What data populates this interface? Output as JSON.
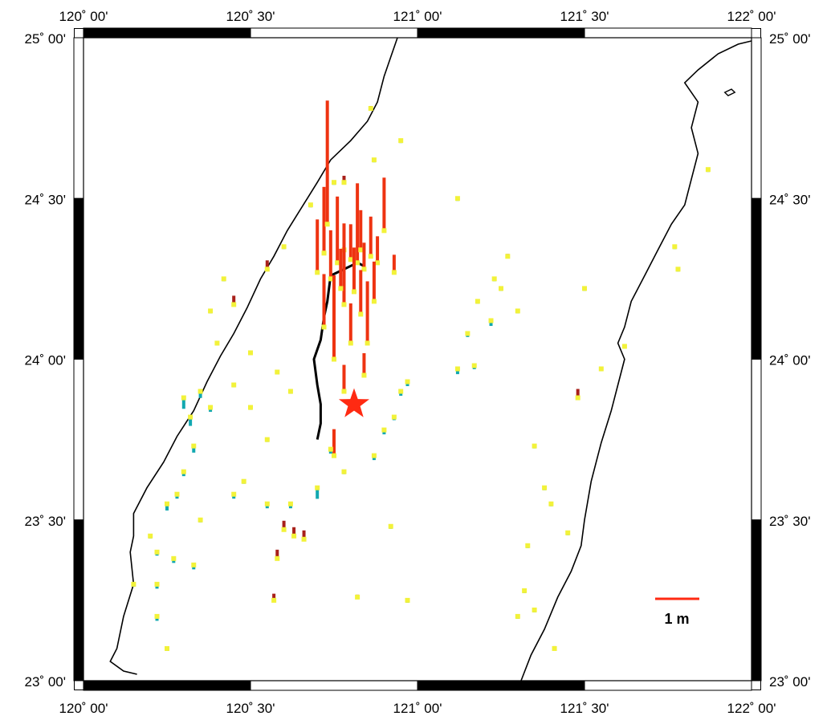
{
  "map": {
    "lon_range": [
      120.0,
      122.0
    ],
    "lat_range": [
      23.0,
      25.0
    ],
    "lon_ticks": [
      {
        "value": 120.0,
        "label": "120˚ 00'"
      },
      {
        "value": 120.5,
        "label": "120˚ 30'"
      },
      {
        "value": 121.0,
        "label": "121˚ 00'"
      },
      {
        "value": 121.5,
        "label": "121˚ 30'"
      },
      {
        "value": 122.0,
        "label": "122˚ 00'"
      }
    ],
    "lat_ticks": [
      {
        "value": 25.0,
        "label": "25˚ 00'"
      },
      {
        "value": 24.5,
        "label": "24˚ 30'"
      },
      {
        "value": 24.0,
        "label": "24˚ 00'"
      },
      {
        "value": 23.5,
        "label": "23˚ 30'"
      },
      {
        "value": 23.0,
        "label": "23˚ 00'"
      }
    ],
    "frame_band_colors": [
      "#000000",
      "#ffffff"
    ],
    "epicenter": {
      "lon": 120.81,
      "lat": 23.86,
      "symbol": "star-icon",
      "color": "#ff2a12"
    },
    "scale_bar": {
      "label": "1 m",
      "color": "#ff2a12"
    },
    "colors": {
      "uplift_large": "#ee3311",
      "uplift_small": "#a8201a",
      "subsidence": "#11a8b0",
      "station": "#f2f23a",
      "coastline": "#000000",
      "fault": "#000000"
    },
    "coastline_west": [
      [
        120.94,
        25.0
      ],
      [
        120.92,
        24.94
      ],
      [
        120.9,
        24.88
      ],
      [
        120.88,
        24.8
      ],
      [
        120.85,
        24.74
      ],
      [
        120.8,
        24.68
      ],
      [
        120.74,
        24.62
      ],
      [
        120.7,
        24.55
      ],
      [
        120.67,
        24.5
      ],
      [
        120.64,
        24.45
      ],
      [
        120.61,
        24.4
      ],
      [
        120.57,
        24.32
      ],
      [
        120.53,
        24.25
      ],
      [
        120.49,
        24.16
      ],
      [
        120.45,
        24.08
      ],
      [
        120.41,
        24.01
      ],
      [
        120.37,
        23.93
      ],
      [
        120.33,
        23.84
      ],
      [
        120.28,
        23.76
      ],
      [
        120.24,
        23.68
      ],
      [
        120.19,
        23.6
      ],
      [
        120.15,
        23.52
      ],
      [
        120.15,
        23.45
      ],
      [
        120.14,
        23.4
      ],
      [
        120.15,
        23.3
      ],
      [
        120.12,
        23.2
      ],
      [
        120.1,
        23.1
      ],
      [
        120.08,
        23.06
      ],
      [
        120.12,
        23.03
      ],
      [
        120.16,
        23.02
      ]
    ],
    "coastline_east": [
      [
        121.31,
        23.0
      ],
      [
        121.34,
        23.08
      ],
      [
        121.38,
        23.16
      ],
      [
        121.42,
        23.26
      ],
      [
        121.46,
        23.34
      ],
      [
        121.49,
        23.42
      ],
      [
        121.5,
        23.5
      ],
      [
        121.52,
        23.62
      ],
      [
        121.55,
        23.74
      ],
      [
        121.58,
        23.84
      ],
      [
        121.6,
        23.92
      ],
      [
        121.62,
        24.0
      ],
      [
        121.6,
        24.05
      ],
      [
        121.62,
        24.1
      ],
      [
        121.64,
        24.18
      ],
      [
        121.68,
        24.26
      ],
      [
        121.72,
        24.34
      ],
      [
        121.76,
        24.42
      ],
      [
        121.8,
        24.48
      ],
      [
        121.82,
        24.56
      ],
      [
        121.84,
        24.64
      ],
      [
        121.82,
        24.72
      ],
      [
        121.84,
        24.8
      ],
      [
        121.8,
        24.86
      ],
      [
        121.84,
        24.9
      ],
      [
        121.9,
        24.95
      ],
      [
        121.96,
        24.98
      ],
      [
        122.0,
        24.99
      ]
    ],
    "fault_trace": [
      [
        120.7,
        23.75
      ],
      [
        120.71,
        23.8
      ],
      [
        120.71,
        23.86
      ],
      [
        120.7,
        23.92
      ],
      [
        120.69,
        24.0
      ],
      [
        120.71,
        24.06
      ],
      [
        120.72,
        24.13
      ],
      [
        120.73,
        24.18
      ],
      [
        120.74,
        24.26
      ],
      [
        120.78,
        24.28
      ],
      [
        120.82,
        24.3
      ],
      [
        120.84,
        24.29
      ]
    ],
    "island_marker": [
      [
        121.92,
        24.83
      ],
      [
        121.94,
        24.84
      ],
      [
        121.95,
        24.83
      ],
      [
        121.93,
        24.82
      ]
    ],
    "stations": [
      {
        "lon": 120.7,
        "lat": 24.27,
        "dz": 1.2
      },
      {
        "lon": 120.72,
        "lat": 24.33,
        "dz": 1.5
      },
      {
        "lon": 120.73,
        "lat": 24.42,
        "dz": 2.8
      },
      {
        "lon": 120.74,
        "lat": 24.25,
        "dz": 1.1
      },
      {
        "lon": 120.76,
        "lat": 24.3,
        "dz": 1.5
      },
      {
        "lon": 120.78,
        "lat": 24.34,
        "dz": 0.6
      },
      {
        "lon": 120.78,
        "lat": 24.17,
        "dz": 1.3
      },
      {
        "lon": 120.8,
        "lat": 24.31,
        "dz": 0.8
      },
      {
        "lon": 120.82,
        "lat": 24.3,
        "dz": 1.8
      },
      {
        "lon": 120.83,
        "lat": 24.34,
        "dz": 0.9
      },
      {
        "lon": 120.84,
        "lat": 24.28,
        "dz": 0.6
      },
      {
        "lon": 120.86,
        "lat": 24.32,
        "dz": 0.9
      },
      {
        "lon": 120.88,
        "lat": 24.3,
        "dz": 0.6
      },
      {
        "lon": 120.9,
        "lat": 24.4,
        "dz": 1.2
      },
      {
        "lon": 120.93,
        "lat": 24.27,
        "dz": 0.4
      },
      {
        "lon": 120.72,
        "lat": 24.1,
        "dz": 1.2
      },
      {
        "lon": 120.75,
        "lat": 24.0,
        "dz": 1.9
      },
      {
        "lon": 120.77,
        "lat": 24.22,
        "dz": 0.9
      },
      {
        "lon": 120.81,
        "lat": 24.21,
        "dz": 1.0
      },
      {
        "lon": 120.83,
        "lat": 24.14,
        "dz": 1.0
      },
      {
        "lon": 120.85,
        "lat": 24.05,
        "dz": 1.4
      },
      {
        "lon": 120.87,
        "lat": 24.18,
        "dz": 0.9
      },
      {
        "lon": 120.8,
        "lat": 24.05,
        "dz": 0.9
      },
      {
        "lon": 120.78,
        "lat": 23.9,
        "dz": 0.6
      },
      {
        "lon": 120.75,
        "lat": 23.7,
        "dz": 0.6
      },
      {
        "lon": 120.84,
        "lat": 23.95,
        "dz": 0.5
      },
      {
        "lon": 120.45,
        "lat": 24.17,
        "dz": 0.2
      },
      {
        "lon": 120.55,
        "lat": 24.28,
        "dz": 0.2
      },
      {
        "lon": 120.6,
        "lat": 23.47,
        "dz": 0.2
      },
      {
        "lon": 120.63,
        "lat": 23.45,
        "dz": 0.2
      },
      {
        "lon": 120.66,
        "lat": 23.44,
        "dz": 0.2
      },
      {
        "lon": 120.58,
        "lat": 23.38,
        "dz": 0.2
      },
      {
        "lon": 120.57,
        "lat": 23.25,
        "dz": 0.15
      },
      {
        "lon": 120.82,
        "lat": 23.26,
        "dz": 0.05
      },
      {
        "lon": 120.78,
        "lat": 24.55,
        "dz": 0.15
      },
      {
        "lon": 120.86,
        "lat": 24.78,
        "dz": 0.05
      },
      {
        "lon": 121.27,
        "lat": 24.32,
        "dz": 0.05
      },
      {
        "lon": 121.48,
        "lat": 23.88,
        "dz": 0.2
      },
      {
        "lon": 121.41,
        "lat": 23.1,
        "dz": 0.05
      },
      {
        "lon": 120.3,
        "lat": 23.88,
        "dz": -0.25
      },
      {
        "lon": 120.32,
        "lat": 23.82,
        "dz": -0.2
      },
      {
        "lon": 120.35,
        "lat": 23.9,
        "dz": -0.15
      },
      {
        "lon": 120.33,
        "lat": 23.73,
        "dz": -0.15
      },
      {
        "lon": 120.38,
        "lat": 23.85,
        "dz": -0.1
      },
      {
        "lon": 120.3,
        "lat": 23.65,
        "dz": -0.1
      },
      {
        "lon": 120.28,
        "lat": 23.58,
        "dz": -0.1
      },
      {
        "lon": 120.25,
        "lat": 23.55,
        "dz": -0.15
      },
      {
        "lon": 120.27,
        "lat": 23.38,
        "dz": -0.1
      },
      {
        "lon": 120.33,
        "lat": 23.36,
        "dz": -0.1
      },
      {
        "lon": 120.22,
        "lat": 23.4,
        "dz": -0.08
      },
      {
        "lon": 120.22,
        "lat": 23.3,
        "dz": -0.1
      },
      {
        "lon": 120.22,
        "lat": 23.2,
        "dz": -0.1
      },
      {
        "lon": 120.45,
        "lat": 23.58,
        "dz": -0.1
      },
      {
        "lon": 120.55,
        "lat": 23.55,
        "dz": -0.1
      },
      {
        "lon": 120.62,
        "lat": 23.55,
        "dz": -0.1
      },
      {
        "lon": 120.7,
        "lat": 23.6,
        "dz": -0.25
      },
      {
        "lon": 120.74,
        "lat": 23.72,
        "dz": -0.1
      },
      {
        "lon": 120.78,
        "lat": 23.65,
        "dz": -0.05
      },
      {
        "lon": 120.87,
        "lat": 23.7,
        "dz": -0.1
      },
      {
        "lon": 120.9,
        "lat": 23.78,
        "dz": -0.1
      },
      {
        "lon": 120.95,
        "lat": 23.9,
        "dz": -0.1
      },
      {
        "lon": 120.97,
        "lat": 23.93,
        "dz": -0.1
      },
      {
        "lon": 120.93,
        "lat": 23.82,
        "dz": -0.07
      },
      {
        "lon": 121.12,
        "lat": 23.97,
        "dz": -0.12
      },
      {
        "lon": 121.15,
        "lat": 24.08,
        "dz": -0.08
      },
      {
        "lon": 121.17,
        "lat": 23.98,
        "dz": -0.08
      },
      {
        "lon": 121.18,
        "lat": 24.18,
        "dz": -0.05
      },
      {
        "lon": 121.22,
        "lat": 24.12,
        "dz": -0.12
      },
      {
        "lon": 121.25,
        "lat": 24.22,
        "dz": -0.05
      },
      {
        "lon": 121.3,
        "lat": 24.15,
        "dz": -0.05
      },
      {
        "lon": 121.12,
        "lat": 24.5,
        "dz": -0.02
      },
      {
        "lon": 121.23,
        "lat": 24.25,
        "dz": -0.02
      },
      {
        "lon": 121.5,
        "lat": 24.22,
        "dz": -0.03
      },
      {
        "lon": 121.62,
        "lat": 24.04,
        "dz": -0.03
      },
      {
        "lon": 121.55,
        "lat": 23.97,
        "dz": -0.03
      },
      {
        "lon": 121.78,
        "lat": 24.28,
        "dz": -0.02
      },
      {
        "lon": 121.77,
        "lat": 24.35,
        "dz": -0.02
      },
      {
        "lon": 121.87,
        "lat": 24.59,
        "dz": -0.02
      },
      {
        "lon": 121.35,
        "lat": 23.73,
        "dz": -0.02
      },
      {
        "lon": 121.38,
        "lat": 23.6,
        "dz": -0.02
      },
      {
        "lon": 121.4,
        "lat": 23.55,
        "dz": -0.02
      },
      {
        "lon": 121.45,
        "lat": 23.46,
        "dz": -0.02
      },
      {
        "lon": 121.33,
        "lat": 23.42,
        "dz": -0.03
      },
      {
        "lon": 121.32,
        "lat": 23.28,
        "dz": -0.03
      },
      {
        "lon": 121.35,
        "lat": 23.22,
        "dz": -0.02
      },
      {
        "lon": 121.3,
        "lat": 23.2,
        "dz": -0.02
      },
      {
        "lon": 120.2,
        "lat": 23.45,
        "dz": -0.05
      },
      {
        "lon": 120.35,
        "lat": 23.5,
        "dz": -0.05
      },
      {
        "lon": 120.48,
        "lat": 23.62,
        "dz": -0.04
      },
      {
        "lon": 120.55,
        "lat": 23.75,
        "dz": -0.04
      },
      {
        "lon": 120.5,
        "lat": 23.85,
        "dz": -0.05
      },
      {
        "lon": 120.45,
        "lat": 23.92,
        "dz": -0.05
      },
      {
        "lon": 120.58,
        "lat": 23.96,
        "dz": -0.04
      },
      {
        "lon": 120.62,
        "lat": 23.9,
        "dz": -0.05
      },
      {
        "lon": 120.5,
        "lat": 24.02,
        "dz": -0.04
      },
      {
        "lon": 120.4,
        "lat": 24.05,
        "dz": -0.03
      },
      {
        "lon": 120.38,
        "lat": 24.15,
        "dz": -0.03
      },
      {
        "lon": 120.42,
        "lat": 24.25,
        "dz": -0.03
      },
      {
        "lon": 120.6,
        "lat": 24.35,
        "dz": -0.03
      },
      {
        "lon": 120.68,
        "lat": 24.48,
        "dz": -0.03
      },
      {
        "lon": 120.75,
        "lat": 24.55,
        "dz": -0.03
      },
      {
        "lon": 120.87,
        "lat": 24.62,
        "dz": -0.03
      },
      {
        "lon": 120.95,
        "lat": 24.68,
        "dz": -0.02
      },
      {
        "lon": 120.25,
        "lat": 23.1,
        "dz": -0.05
      },
      {
        "lon": 120.15,
        "lat": 23.3,
        "dz": -0.03
      },
      {
        "lon": 120.92,
        "lat": 23.48,
        "dz": -0.03
      },
      {
        "lon": 120.97,
        "lat": 23.25,
        "dz": -0.02
      }
    ]
  }
}
